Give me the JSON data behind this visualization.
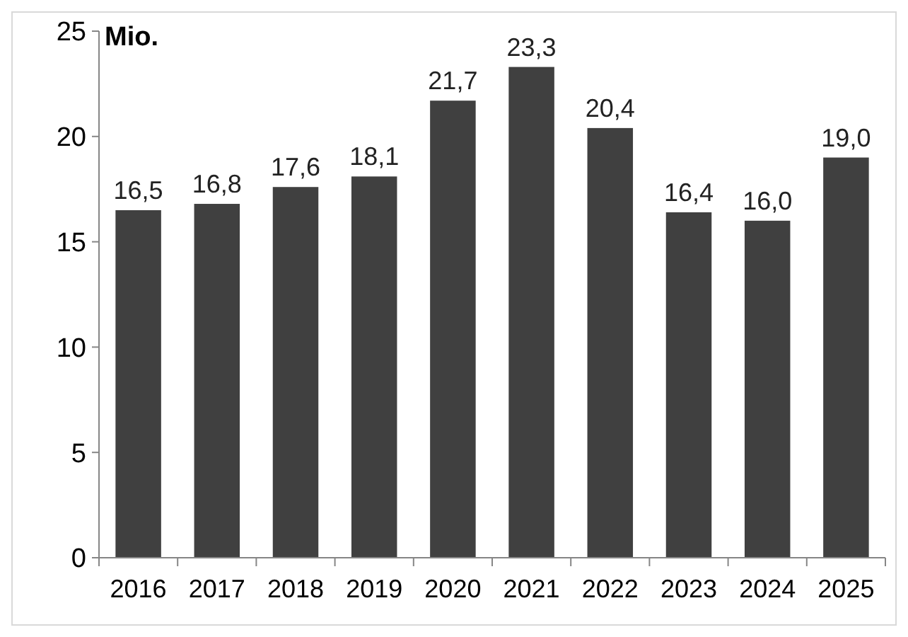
{
  "chart_data": {
    "type": "bar",
    "ylabel": "Mio.",
    "categories": [
      "2016",
      "2017",
      "2018",
      "2019",
      "2020",
      "2021",
      "2022",
      "2023",
      "2024",
      "2025"
    ],
    "values": [
      16.5,
      16.8,
      17.6,
      18.1,
      21.7,
      23.3,
      20.4,
      16.4,
      16.0,
      19.0
    ],
    "value_labels": [
      "16,5",
      "16,8",
      "17,6",
      "18,1",
      "21,7",
      "23,3",
      "20,4",
      "16,4",
      "16,0",
      "19,0"
    ],
    "color": "#404040",
    "ylim": [
      0,
      25
    ],
    "yticks": [
      0,
      5,
      10,
      15,
      20,
      25
    ],
    "grid": false
  }
}
